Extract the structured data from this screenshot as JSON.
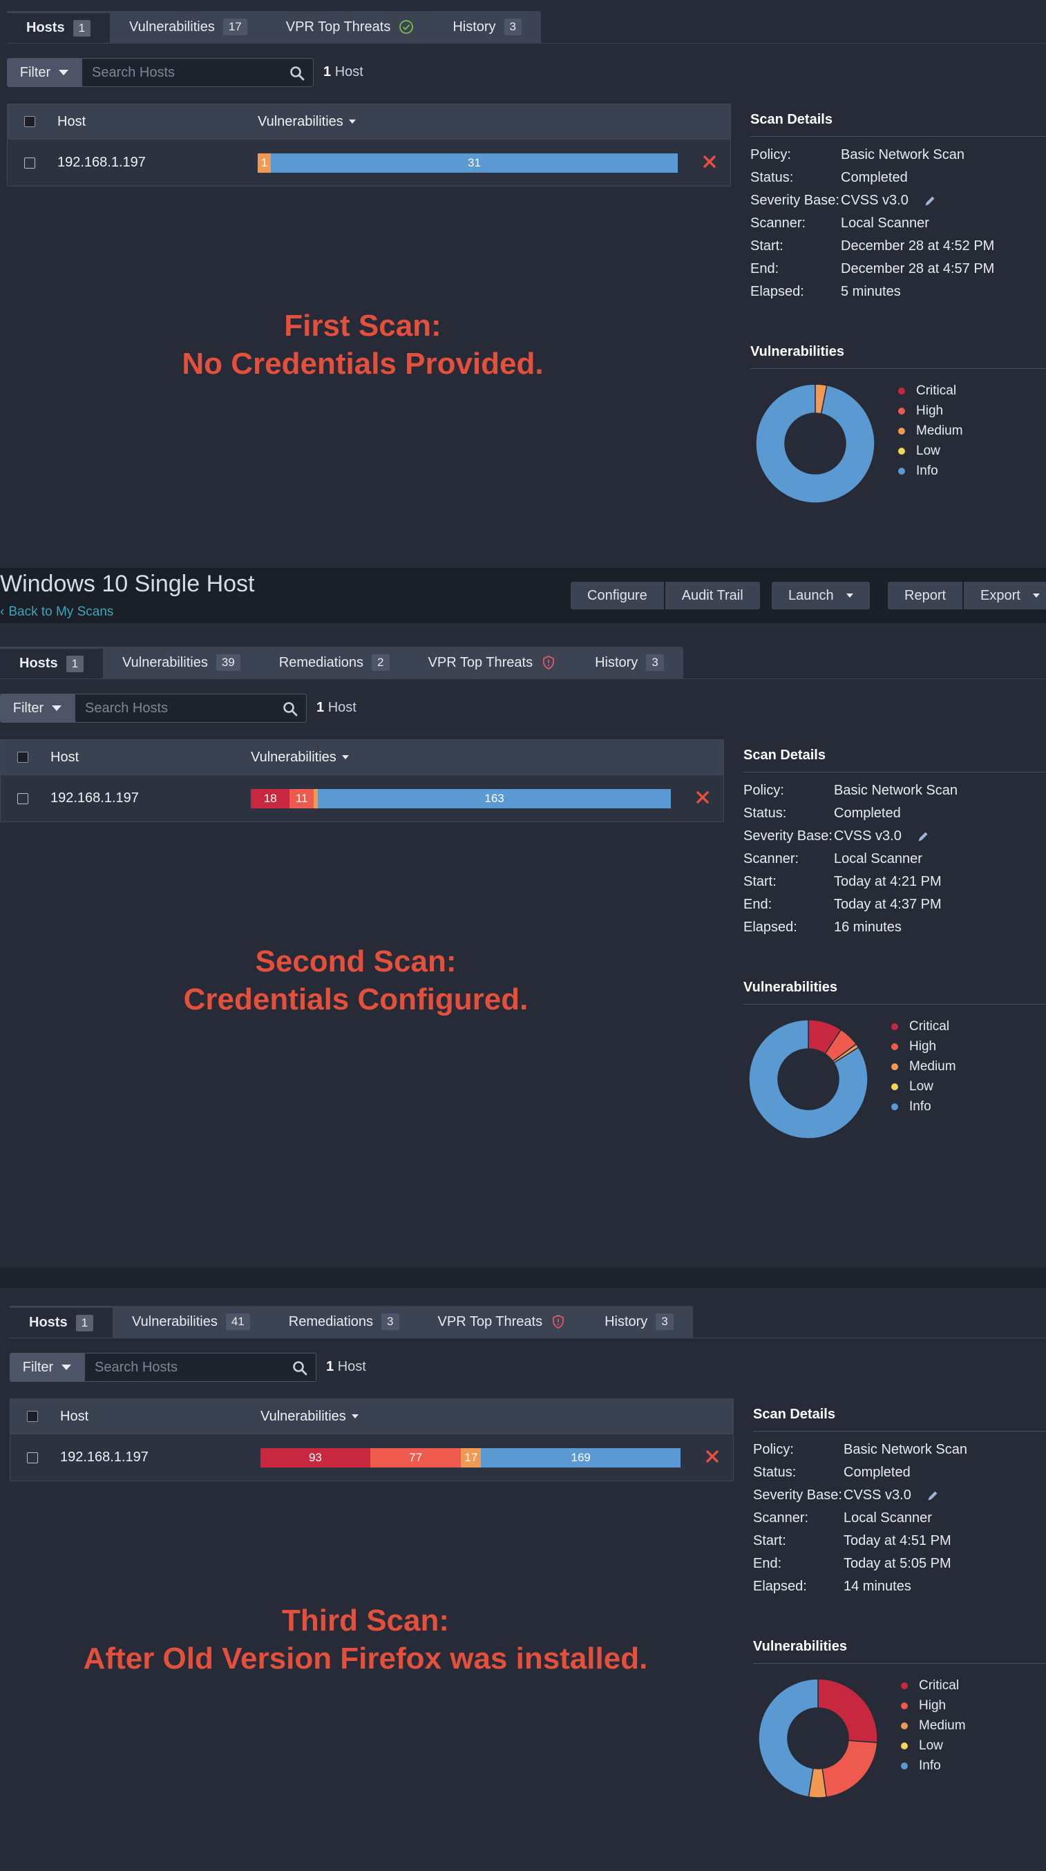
{
  "colors": {
    "critical": "#c8283f",
    "high": "#ee5a4d",
    "medium": "#f29a54",
    "low": "#f5d35c",
    "info": "#5b99d3",
    "caption": "#e4503c"
  },
  "header": {
    "title": "Windows 10 Single Host",
    "back_link": "Back to My Scans",
    "buttons": {
      "configure": "Configure",
      "audit_trail": "Audit Trail",
      "launch": "Launch",
      "report": "Report",
      "export": "Export"
    }
  },
  "legend_labels": [
    "Critical",
    "High",
    "Medium",
    "Low",
    "Info"
  ],
  "common": {
    "filter_label": "Filter",
    "search_placeholder": "Search Hosts",
    "host_count_num": "1",
    "host_count_word": "Host",
    "col_host": "Host",
    "col_vulnerabilities": "Vulnerabilities",
    "scan_details_title": "Scan Details",
    "vulnerabilities_title": "Vulnerabilities",
    "label_policy": "Policy:",
    "label_status": "Status:",
    "label_severity": "Severity Base:",
    "label_scanner": "Scanner:",
    "label_start": "Start:",
    "label_end": "End:",
    "label_elapsed": "Elapsed:"
  },
  "scans": [
    {
      "tabs": [
        {
          "label": "Hosts",
          "badge": "1"
        },
        {
          "label": "Vulnerabilities",
          "badge": "17"
        },
        {
          "label": "VPR Top Threats",
          "icon": "check-circle-icon"
        },
        {
          "label": "History",
          "badge": "3"
        }
      ],
      "host": "192.168.1.197",
      "bar": {
        "critical": 0,
        "high": 0,
        "medium": 1,
        "low": 0,
        "info": 31
      },
      "bar_labels": {
        "medium": "1",
        "info": "31"
      },
      "details": {
        "policy": "Basic Network Scan",
        "status": "Completed",
        "severity": "CVSS v3.0",
        "scanner": "Local Scanner",
        "start": "December 28 at 4:52 PM",
        "end": "December 28 at 4:57 PM",
        "elapsed": "5 minutes"
      },
      "caption": [
        "First Scan:",
        "No Credentials Provided."
      ]
    },
    {
      "tabs": [
        {
          "label": "Hosts",
          "badge": "1"
        },
        {
          "label": "Vulnerabilities",
          "badge": "39"
        },
        {
          "label": "Remediations",
          "badge": "2"
        },
        {
          "label": "VPR Top Threats",
          "icon": "shield-alert-icon"
        },
        {
          "label": "History",
          "badge": "3"
        }
      ],
      "host": "192.168.1.197",
      "bar": {
        "critical": 18,
        "high": 11,
        "medium": 2,
        "low": 0,
        "info": 163
      },
      "bar_labels": {
        "critical": "18",
        "high": "11",
        "info": "163"
      },
      "details": {
        "policy": "Basic Network Scan",
        "status": "Completed",
        "severity": "CVSS v3.0",
        "scanner": "Local Scanner",
        "start": "Today at 4:21 PM",
        "end": "Today at 4:37 PM",
        "elapsed": "16 minutes"
      },
      "caption": [
        "Second Scan:",
        "Credentials Configured."
      ]
    },
    {
      "tabs": [
        {
          "label": "Hosts",
          "badge": "1"
        },
        {
          "label": "Vulnerabilities",
          "badge": "41"
        },
        {
          "label": "Remediations",
          "badge": "3"
        },
        {
          "label": "VPR Top Threats",
          "icon": "shield-alert-icon"
        },
        {
          "label": "History",
          "badge": "3"
        }
      ],
      "host": "192.168.1.197",
      "bar": {
        "critical": 93,
        "high": 77,
        "medium": 17,
        "low": 0,
        "info": 169
      },
      "bar_labels": {
        "critical": "93",
        "high": "77",
        "medium": "17",
        "info": "169"
      },
      "details": {
        "policy": "Basic Network Scan",
        "status": "Completed",
        "severity": "CVSS v3.0",
        "scanner": "Local Scanner",
        "start": "Today at 4:51 PM",
        "end": "Today at 5:05 PM",
        "elapsed": "14 minutes"
      },
      "caption": [
        "Third Scan:",
        "After Old Version Firefox was installed."
      ]
    }
  ]
}
